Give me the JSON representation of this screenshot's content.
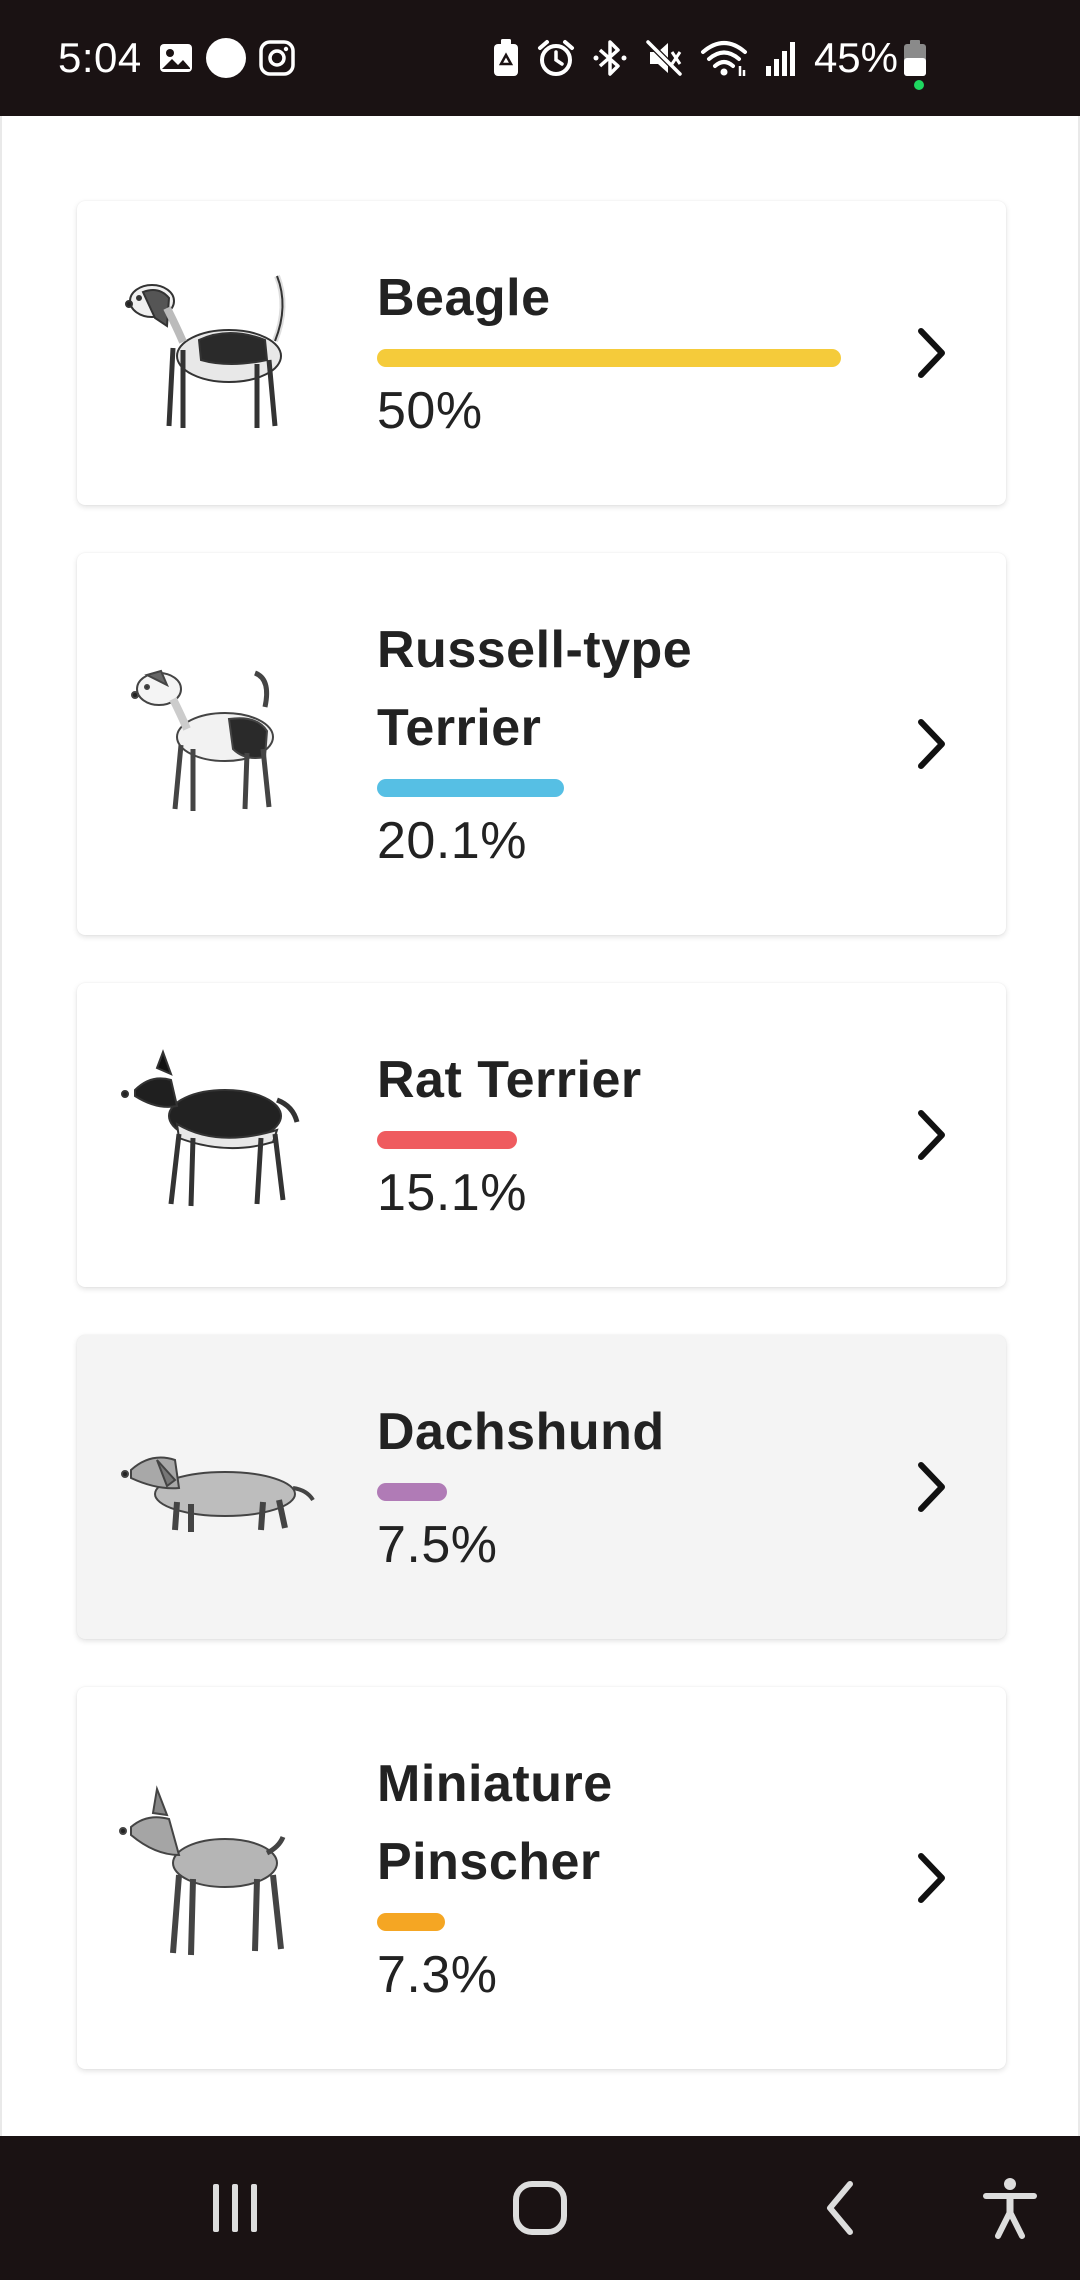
{
  "status_bar": {
    "time": "5:04",
    "battery": "45%",
    "left_icons": [
      "gallery-icon",
      "circle-icon",
      "instagram-icon"
    ],
    "right_icons": [
      "battery-saver-icon",
      "alarm-icon",
      "bluetooth-icon",
      "mute-icon",
      "wifi-icon",
      "signal-icon",
      "battery-icon"
    ]
  },
  "breeds": [
    {
      "name": "Beagle",
      "percent_label": "50%",
      "percent": 50,
      "color": "#f5cb3a",
      "icon": "beagle-illustration"
    },
    {
      "name": "Russell-type Terrier",
      "percent_label": "20.1%",
      "percent": 20.1,
      "color": "#56bfe4",
      "icon": "russell-terrier-illustration"
    },
    {
      "name": "Rat Terrier",
      "percent_label": "15.1%",
      "percent": 15.1,
      "color": "#ef5b5f",
      "icon": "rat-terrier-illustration"
    },
    {
      "name": "Dachshund",
      "percent_label": "7.5%",
      "percent": 7.5,
      "color": "#b07bb6",
      "icon": "dachshund-illustration"
    },
    {
      "name": "Miniature Pinscher",
      "percent_label": "7.3%",
      "percent": 7.3,
      "color": "#f5a623",
      "icon": "miniature-pinscher-illustration"
    }
  ],
  "nav_bar": {
    "buttons": [
      "recent-apps-icon",
      "home-icon",
      "back-icon",
      "accessibility-icon"
    ]
  }
}
